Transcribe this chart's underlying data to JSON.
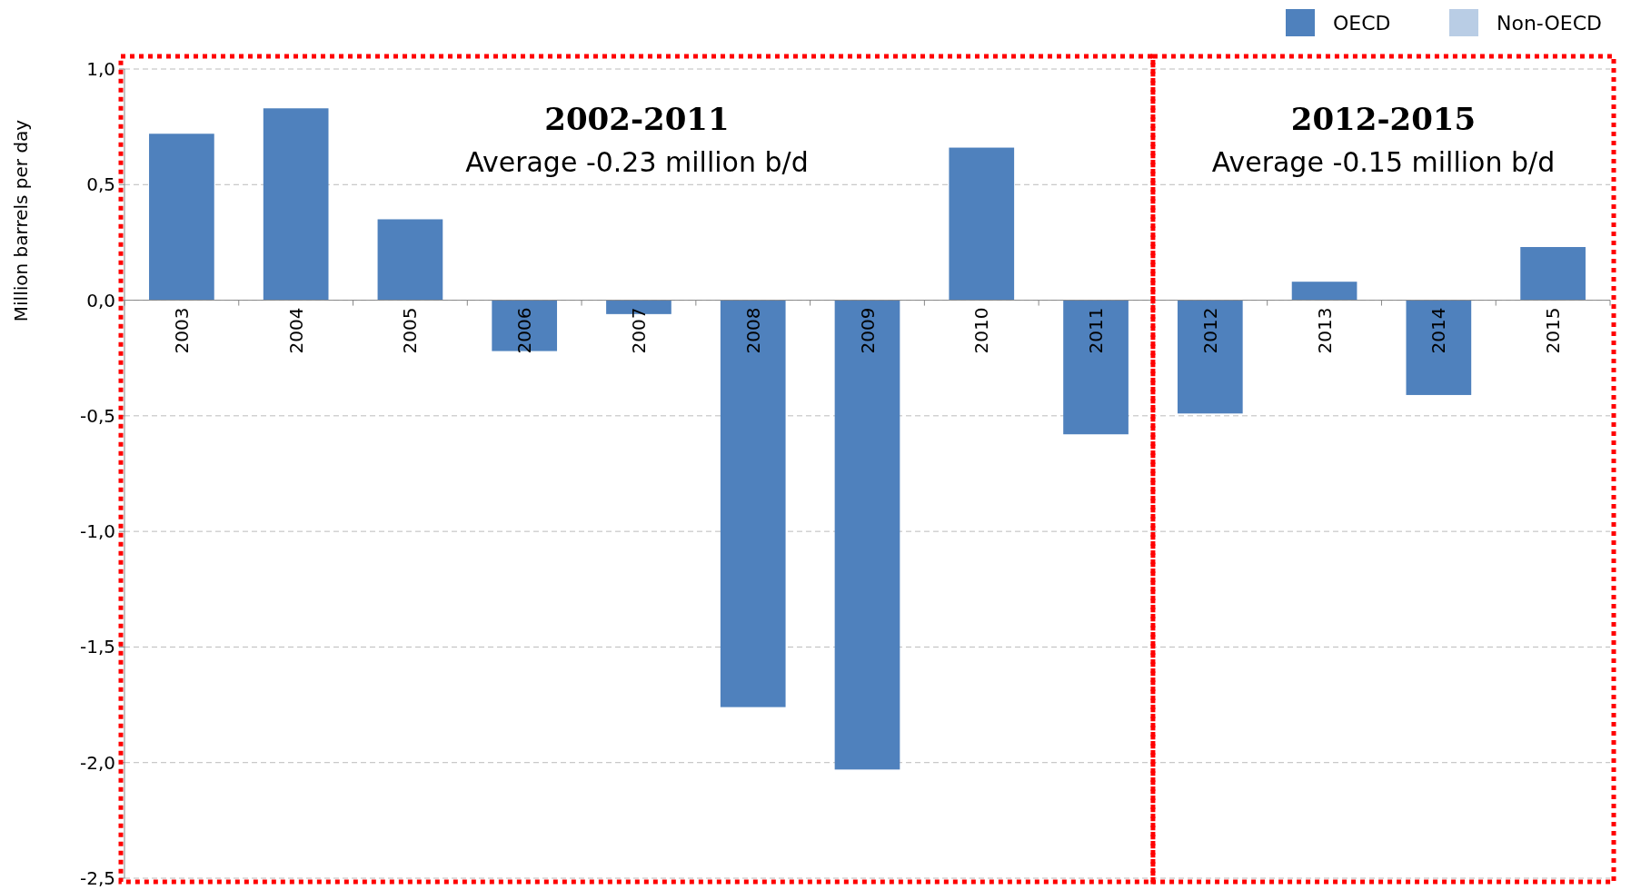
{
  "chart_data": {
    "type": "bar",
    "ylabel": "Million barrels per day",
    "categories": [
      "2003",
      "2004",
      "2005",
      "2006",
      "2007",
      "2008",
      "2009",
      "2010",
      "2011",
      "2012",
      "2013",
      "2014",
      "2015"
    ],
    "series": [
      {
        "name": "OECD",
        "color": "#4f81bd",
        "values": [
          0.72,
          0.83,
          0.35,
          -0.22,
          -0.06,
          -1.76,
          -2.03,
          0.66,
          -0.58,
          -0.49,
          0.08,
          -0.41,
          0.23
        ]
      },
      {
        "name": "Non-OECD",
        "color": "#b9cde5",
        "values": [
          null,
          null,
          null,
          null,
          null,
          null,
          null,
          null,
          null,
          null,
          null,
          null,
          null
        ]
      }
    ],
    "ylim": [
      -2.5,
      1.0
    ],
    "yticks": [
      {
        "value": -2.5,
        "label": "-2,5"
      },
      {
        "value": -2,
        "label": "-2,0"
      },
      {
        "value": -1.5,
        "label": "-1,5"
      },
      {
        "value": -1,
        "label": "-1,0"
      },
      {
        "value": -0.5,
        "label": "-0,5"
      },
      {
        "value": 0,
        "label": "0,0"
      },
      {
        "value": 0.5,
        "label": "0,5"
      },
      {
        "value": 1,
        "label": "1,0"
      }
    ],
    "grid": "y",
    "legend": "top right",
    "annotations": [
      "2002-2011",
      "Average -0.23 million b/d",
      "2012-2015",
      "Average -0.15 million b/d"
    ]
  }
}
